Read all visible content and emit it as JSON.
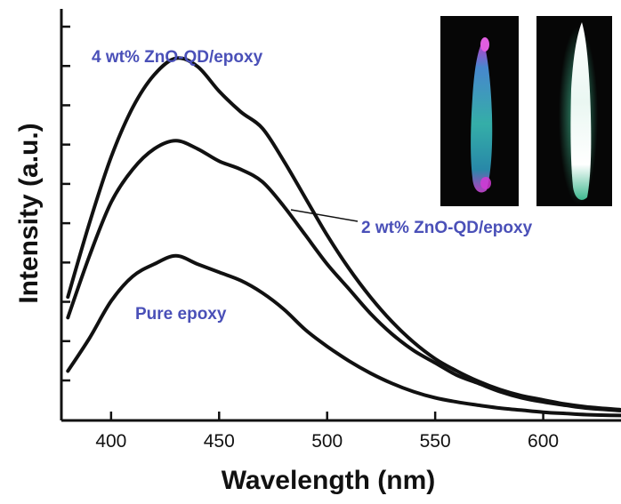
{
  "chart_data": {
    "type": "line",
    "xlabel": "Wavelength (nm)",
    "ylabel": "Intensity (a.u.)",
    "xlim": [
      377,
      636
    ],
    "ylim": [
      0,
      1.0
    ],
    "x_ticks": [
      400,
      450,
      500,
      550,
      600
    ],
    "y_tick_count": 10,
    "grid": false,
    "x": [
      380,
      390,
      400,
      410,
      420,
      430,
      440,
      450,
      460,
      470,
      480,
      490,
      500,
      510,
      520,
      530,
      540,
      550,
      560,
      570,
      580,
      590,
      600,
      610,
      620,
      636
    ],
    "series": [
      {
        "name": "4 wt% ZnO-QD/epoxy",
        "values": [
          0.3,
          0.48,
          0.64,
          0.76,
          0.84,
          0.88,
          0.86,
          0.8,
          0.75,
          0.71,
          0.63,
          0.54,
          0.45,
          0.37,
          0.3,
          0.24,
          0.19,
          0.15,
          0.12,
          0.095,
          0.075,
          0.06,
          0.05,
          0.04,
          0.033,
          0.026
        ]
      },
      {
        "name": "2 wt% ZnO-QD/epoxy",
        "values": [
          0.25,
          0.4,
          0.53,
          0.61,
          0.66,
          0.68,
          0.66,
          0.63,
          0.61,
          0.58,
          0.52,
          0.45,
          0.38,
          0.32,
          0.26,
          0.21,
          0.17,
          0.14,
          0.11,
          0.09,
          0.07,
          0.055,
          0.045,
          0.037,
          0.03,
          0.024
        ]
      },
      {
        "name": "Pure epoxy",
        "values": [
          0.12,
          0.2,
          0.29,
          0.35,
          0.38,
          0.4,
          0.38,
          0.36,
          0.34,
          0.31,
          0.27,
          0.22,
          0.18,
          0.145,
          0.115,
          0.09,
          0.07,
          0.055,
          0.045,
          0.037,
          0.03,
          0.025,
          0.02,
          0.017,
          0.014,
          0.012
        ]
      }
    ],
    "annotations": [
      {
        "text": "4 wt% ZnO-QD/epoxy",
        "series": 0
      },
      {
        "text": "2 wt% ZnO-QD/epoxy",
        "series": 1
      },
      {
        "text": "Pure epoxy",
        "series": 2
      }
    ]
  },
  "colors": {
    "line": "#111111",
    "label": "#4a50b8",
    "inset_background": "#060606",
    "inset_left_glow": "#37b7b0",
    "inset_left_tip": "#d23ad6",
    "inset_right_glow": "#eaf7f2",
    "inset_right_edge": "#3fb88f"
  },
  "inset": {
    "description_icons": [
      "flame-photo-icon",
      "glow-photo-icon"
    ]
  }
}
